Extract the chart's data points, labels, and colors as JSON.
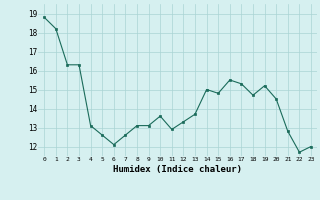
{
  "x": [
    0,
    1,
    2,
    3,
    4,
    5,
    6,
    7,
    8,
    9,
    10,
    11,
    12,
    13,
    14,
    15,
    16,
    17,
    18,
    19,
    20,
    21,
    22,
    23
  ],
  "y": [
    18.8,
    18.2,
    16.3,
    16.3,
    13.1,
    12.6,
    12.1,
    12.6,
    13.1,
    13.1,
    13.6,
    12.9,
    13.3,
    13.7,
    15.0,
    14.8,
    15.5,
    15.3,
    14.7,
    15.2,
    14.5,
    12.8,
    11.7,
    12.0
  ],
  "xlabel": "Humidex (Indice chaleur)",
  "yticks": [
    12,
    13,
    14,
    15,
    16,
    17,
    18,
    19
  ],
  "xticks": [
    0,
    1,
    2,
    3,
    4,
    5,
    6,
    7,
    8,
    9,
    10,
    11,
    12,
    13,
    14,
    15,
    16,
    17,
    18,
    19,
    20,
    21,
    22,
    23
  ],
  "line_color": "#1a6b5a",
  "marker_color": "#1a6b5a",
  "bg_color": "#d6f0f0",
  "grid_color": "#aad4d4",
  "ylim": [
    11.5,
    19.5
  ],
  "xlim": [
    -0.5,
    23.5
  ]
}
